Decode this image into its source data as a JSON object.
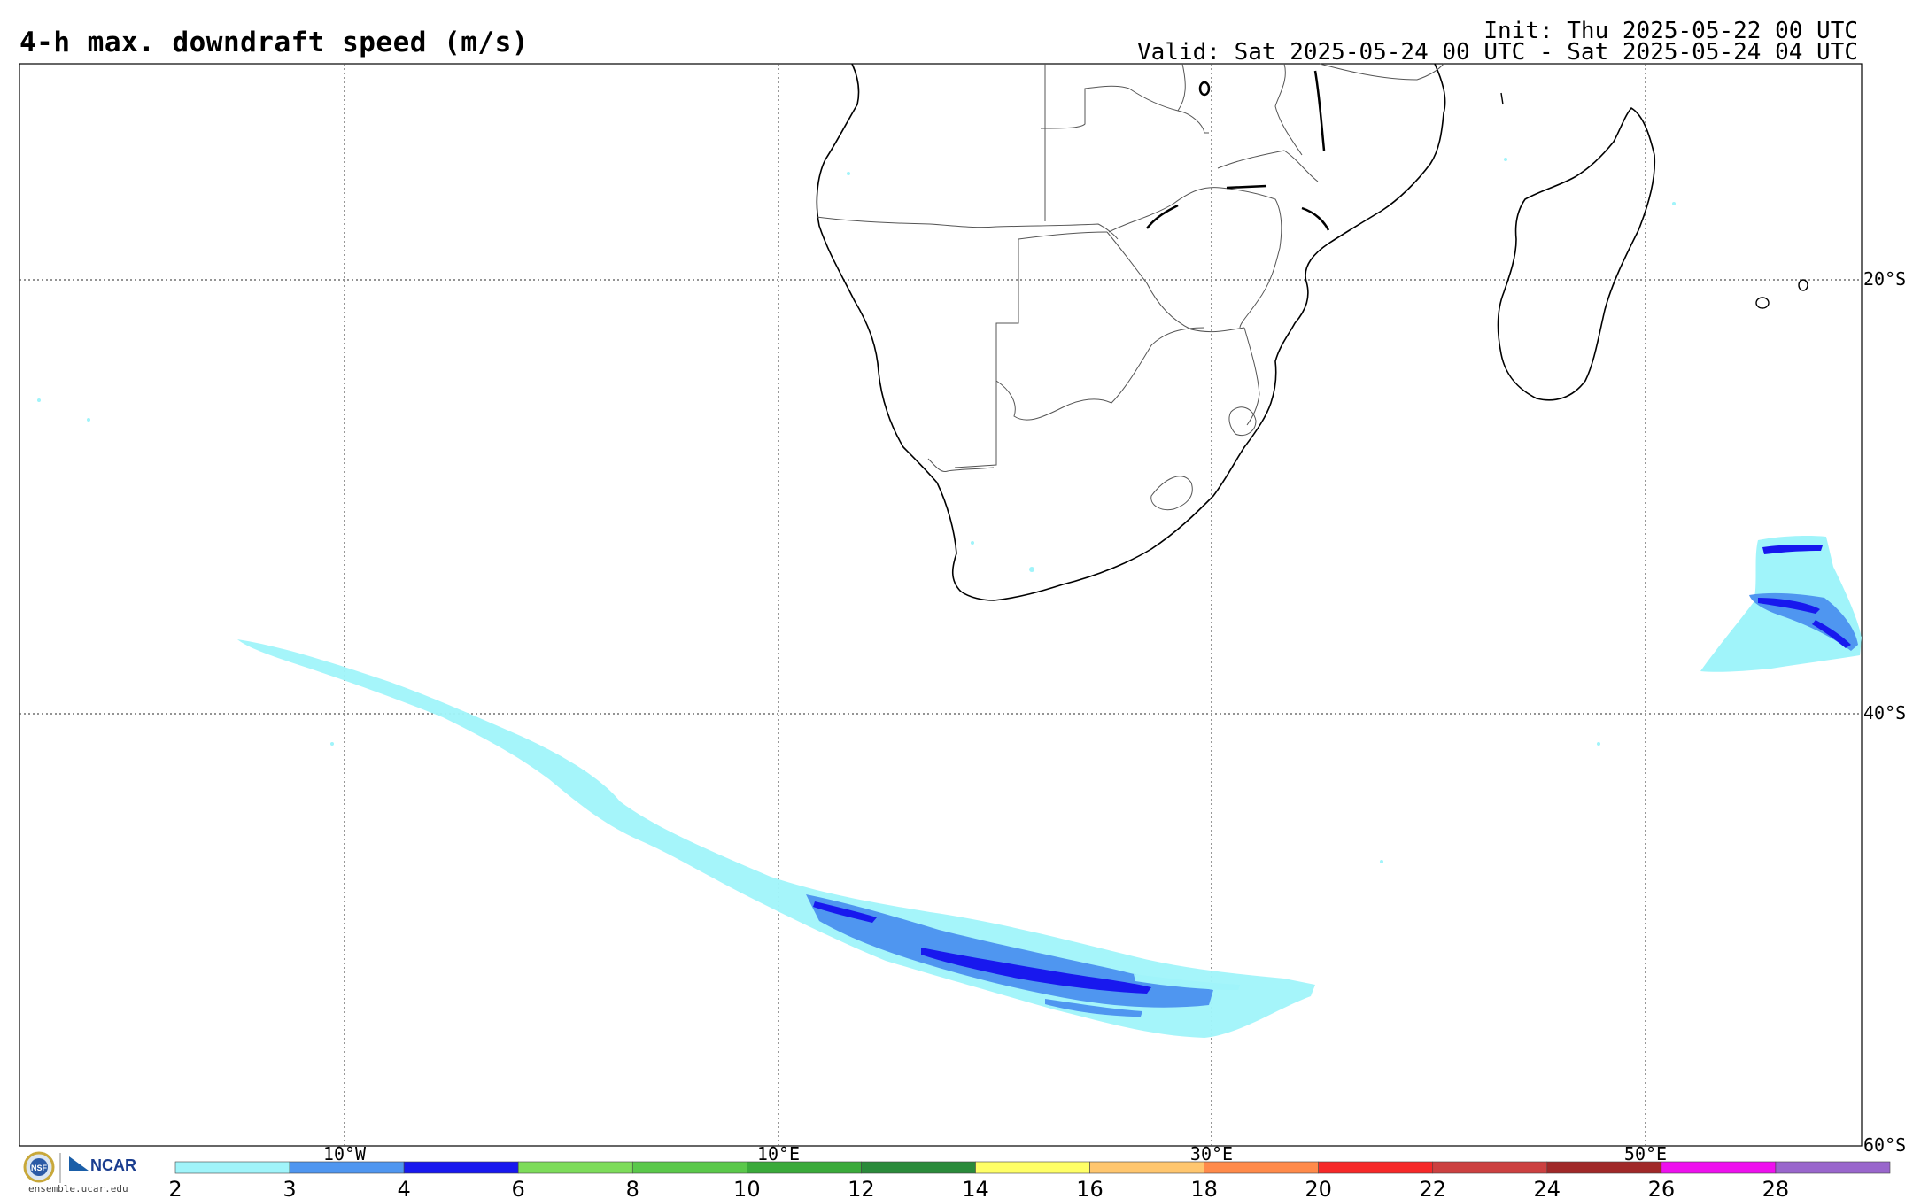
{
  "title": "4-h max. downdraft speed (m/s)",
  "init": "Init: Thu 2025-05-22 00 UTC",
  "valid": "Valid: Sat 2025-05-24 00 UTC - Sat 2025-05-24 04 UTC",
  "lat_labels": [
    "20°S",
    "40°S",
    "60°S"
  ],
  "lon_labels": [
    "10°W",
    "10°E",
    "30°E",
    "50°E"
  ],
  "colorbar": {
    "ticks": [
      "2",
      "3",
      "4",
      "6",
      "8",
      "10",
      "12",
      "14",
      "16",
      "18",
      "20",
      "22",
      "24",
      "26",
      "28"
    ],
    "colors": [
      "#a0f4fa",
      "#4f96f0",
      "#1818ee",
      "#7ddc5a",
      "#5ac84a",
      "#3aaa3a",
      "#2a8a3a",
      "#ffff66",
      "#ffc66e",
      "#ff8a4a",
      "#f62828",
      "#cc4040",
      "#a02828",
      "#ee10ee",
      "#9966cc"
    ]
  },
  "logos": {
    "nsf": "NSF",
    "ncar": "NCAR",
    "url": "ensemble.ucar.edu"
  },
  "map": {
    "region": "Southern Africa and South Atlantic / Indian Ocean",
    "features": [
      "coastline-africa",
      "country-borders",
      "madagascar",
      "downdraft-swath-south-atlantic",
      "downdraft-cluster-indian-ocean"
    ]
  }
}
